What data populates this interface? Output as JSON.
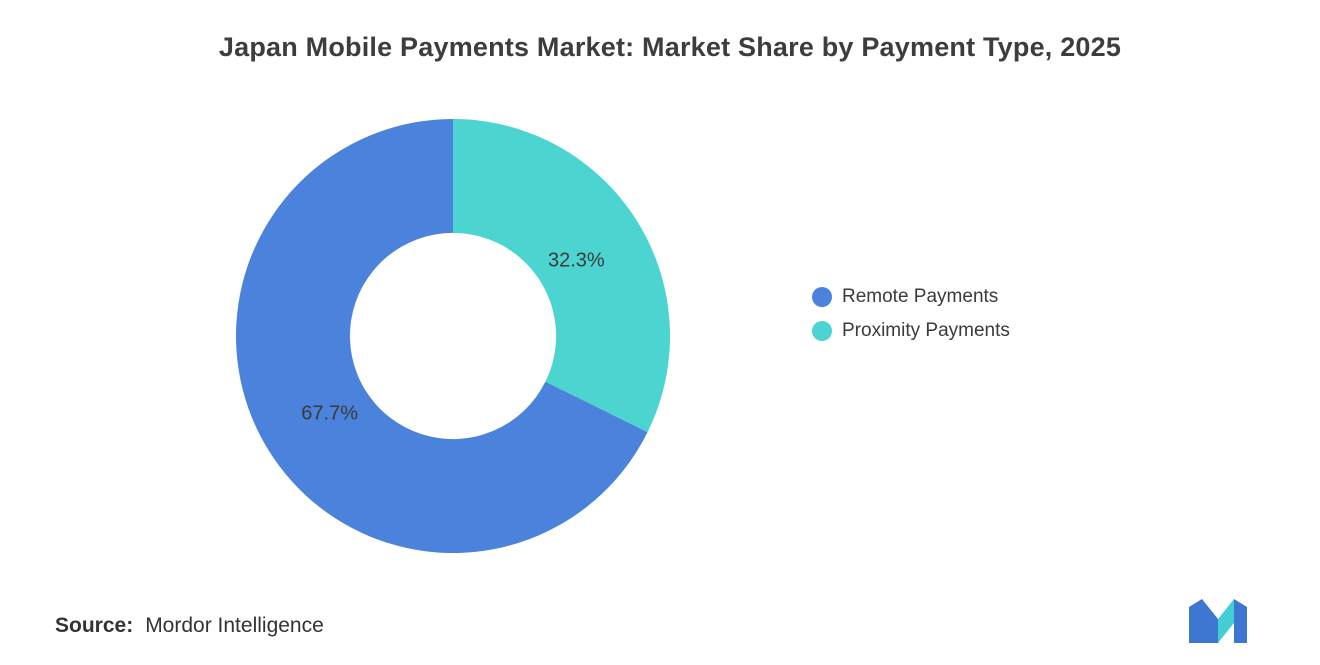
{
  "title": "Japan Mobile Payments Market: Market Share by Payment Type, 2025",
  "source": {
    "label": "Source:",
    "value": "Mordor Intelligence"
  },
  "chart_data": {
    "type": "pie",
    "subtype": "donut",
    "title": "Japan Mobile Payments Market: Market Share by Payment Type, 2025",
    "categories": [
      "Remote Payments",
      "Proximity Payments"
    ],
    "values": [
      67.7,
      32.3
    ],
    "data_labels": [
      "67.7%",
      "32.3%"
    ],
    "colors": [
      "#4A82DC",
      "#4BD4D0"
    ],
    "label_color": "#3a3a3a",
    "start_angle_deg": 0,
    "direction": "counterclockwise",
    "inner_radius_ratio": 0.475,
    "legend_position": "right",
    "grid": false
  },
  "logo": {
    "name": "mordor-intelligence-logo",
    "blue": "#3D77D1",
    "teal": "#45CDD4"
  }
}
